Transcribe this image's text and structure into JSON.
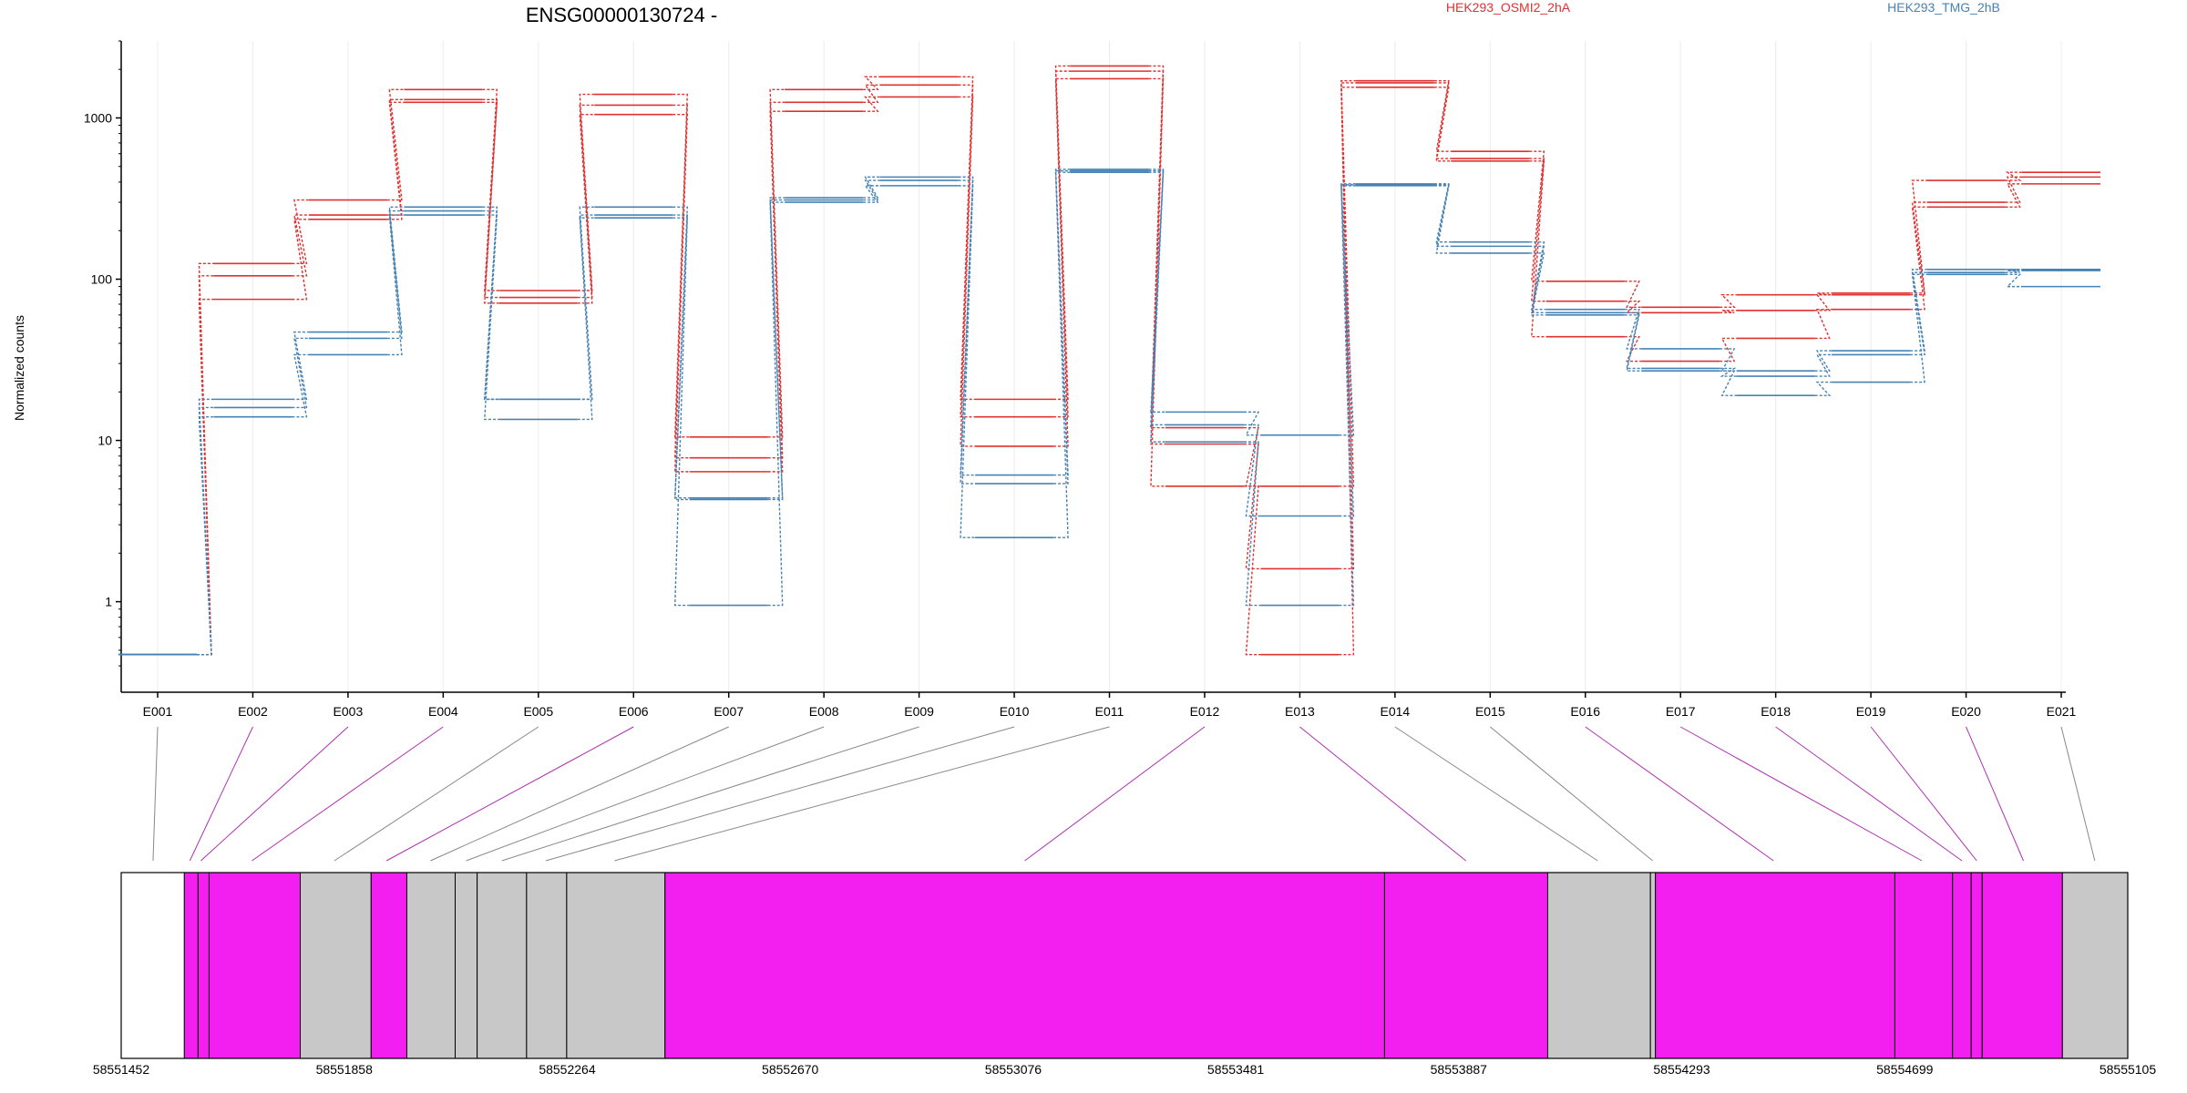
{
  "chart_data": {
    "type": "line",
    "title": "ENSG00000130724 -",
    "ylabel": "Normalized counts",
    "yscale": "log",
    "ylim": [
      0.38,
      3000
    ],
    "grid": "vertical",
    "legend_placement": "top-right",
    "yticks": [
      {
        "value": 1,
        "label": "1"
      },
      {
        "value": 10,
        "label": "10"
      },
      {
        "value": 100,
        "label": "100"
      },
      {
        "value": 1000,
        "label": "1000"
      }
    ],
    "exons": [
      "E001",
      "E002",
      "E003",
      "E004",
      "E005",
      "E006",
      "E007",
      "E008",
      "E009",
      "E010",
      "E011",
      "E012",
      "E013",
      "E014",
      "E015",
      "E016",
      "E017",
      "E018",
      "E019",
      "E020",
      "E021"
    ],
    "series": [
      {
        "name": "HEK293_OSMI2_2hA",
        "color": "#e03131",
        "replicates": [
          [
            0.47,
            125,
            310,
            1500,
            85,
            1400,
            10.5,
            1500,
            1800,
            18,
            2100,
            12,
            5.2,
            1700,
            620,
            97,
            67,
            80,
            82,
            410,
            460
          ],
          [
            0.47,
            105,
            250,
            1300,
            77,
            1200,
            7.8,
            1250,
            1600,
            14,
            1950,
            9.5,
            1.6,
            1650,
            560,
            73,
            62,
            64,
            80,
            300,
            430
          ],
          [
            0.47,
            75,
            235,
            1250,
            71,
            1050,
            6.4,
            1100,
            1350,
            9.2,
            1750,
            5.2,
            0.47,
            1550,
            540,
            44,
            31,
            43,
            65,
            280,
            390
          ]
        ]
      },
      {
        "name": "HEK293_TMG_2hB",
        "color": "#4682b4",
        "replicates": [
          [
            0.47,
            18,
            47,
            280,
            18,
            280,
            4.4,
            320,
            430,
            6.1,
            480,
            15,
            10.8,
            390,
            170,
            65,
            37,
            27,
            36,
            115,
            113
          ],
          [
            0.47,
            16,
            43,
            265,
            18,
            250,
            4.3,
            310,
            410,
            5.4,
            470,
            12.5,
            3.4,
            385,
            160,
            62,
            28,
            25,
            34,
            110,
            115
          ],
          [
            0.47,
            14,
            34,
            250,
            13.5,
            240,
            0.95,
            300,
            380,
            2.5,
            460,
            9.8,
            0.95,
            380,
            145,
            60,
            27,
            19,
            23,
            107,
            90
          ]
        ]
      }
    ],
    "genome": {
      "start": 58551452,
      "end": 58555105,
      "tick_labels": [
        "58551452",
        "58551858",
        "58552264",
        "58552670",
        "58553076",
        "58553481",
        "58553887",
        "58554293",
        "58554699",
        "58555105"
      ],
      "tick_values": [
        58551452,
        58551858,
        58552264,
        58552670,
        58553076,
        58553481,
        58553887,
        58554293,
        58554699,
        58555105
      ],
      "exon_color": "#f21ff0",
      "intron_color": "#c8c8c8",
      "segments": [
        {
          "start": 58551452,
          "end": 58551567,
          "kind": "none"
        },
        {
          "start": 58551567,
          "end": 58551592,
          "kind": "exon"
        },
        {
          "start": 58551592,
          "end": 58551612,
          "kind": "exon"
        },
        {
          "start": 58551612,
          "end": 58551778,
          "kind": "exon"
        },
        {
          "start": 58551778,
          "end": 58551907,
          "kind": "intron"
        },
        {
          "start": 58551907,
          "end": 58551972,
          "kind": "exon"
        },
        {
          "start": 58551972,
          "end": 58552060,
          "kind": "intron"
        },
        {
          "start": 58552060,
          "end": 58552100,
          "kind": "intron"
        },
        {
          "start": 58552100,
          "end": 58552190,
          "kind": "intron"
        },
        {
          "start": 58552190,
          "end": 58552263,
          "kind": "intron"
        },
        {
          "start": 58552263,
          "end": 58552442,
          "kind": "intron"
        },
        {
          "start": 58552442,
          "end": 58553752,
          "kind": "exon"
        },
        {
          "start": 58553752,
          "end": 58554049,
          "kind": "exon"
        },
        {
          "start": 58554049,
          "end": 58554236,
          "kind": "intron"
        },
        {
          "start": 58554236,
          "end": 58554245,
          "kind": "intron"
        },
        {
          "start": 58554245,
          "end": 58554681,
          "kind": "exon"
        },
        {
          "start": 58554681,
          "end": 58554786,
          "kind": "exon"
        },
        {
          "start": 58554786,
          "end": 58554820,
          "kind": "exon"
        },
        {
          "start": 58554820,
          "end": 58554840,
          "kind": "exon"
        },
        {
          "start": 58554840,
          "end": 58554986,
          "kind": "exon"
        },
        {
          "start": 58554986,
          "end": 58555105,
          "kind": "intron"
        }
      ],
      "exon_links": [
        {
          "exon": "E001",
          "pos": 58551510,
          "kind": "intron"
        },
        {
          "exon": "E002",
          "pos": 58551577,
          "kind": "exon"
        },
        {
          "exon": "E003",
          "pos": 58551597,
          "kind": "exon"
        },
        {
          "exon": "E004",
          "pos": 58551690,
          "kind": "exon"
        },
        {
          "exon": "E005",
          "pos": 58551840,
          "kind": "intron"
        },
        {
          "exon": "E006",
          "pos": 58551935,
          "kind": "exon"
        },
        {
          "exon": "E007",
          "pos": 58552015,
          "kind": "intron"
        },
        {
          "exon": "E008",
          "pos": 58552080,
          "kind": "intron"
        },
        {
          "exon": "E009",
          "pos": 58552145,
          "kind": "intron"
        },
        {
          "exon": "E010",
          "pos": 58552225,
          "kind": "intron"
        },
        {
          "exon": "E011",
          "pos": 58552350,
          "kind": "intron"
        },
        {
          "exon": "E012",
          "pos": 58553097,
          "kind": "exon"
        },
        {
          "exon": "E013",
          "pos": 58553900,
          "kind": "exon"
        },
        {
          "exon": "E014",
          "pos": 58554140,
          "kind": "intron"
        },
        {
          "exon": "E015",
          "pos": 58554240,
          "kind": "intron"
        },
        {
          "exon": "E016",
          "pos": 58554460,
          "kind": "exon"
        },
        {
          "exon": "E017",
          "pos": 58554730,
          "kind": "exon"
        },
        {
          "exon": "E018",
          "pos": 58554803,
          "kind": "exon"
        },
        {
          "exon": "E019",
          "pos": 58554830,
          "kind": "exon"
        },
        {
          "exon": "E020",
          "pos": 58554915,
          "kind": "exon"
        },
        {
          "exon": "E021",
          "pos": 58555045,
          "kind": "intron"
        }
      ]
    }
  }
}
